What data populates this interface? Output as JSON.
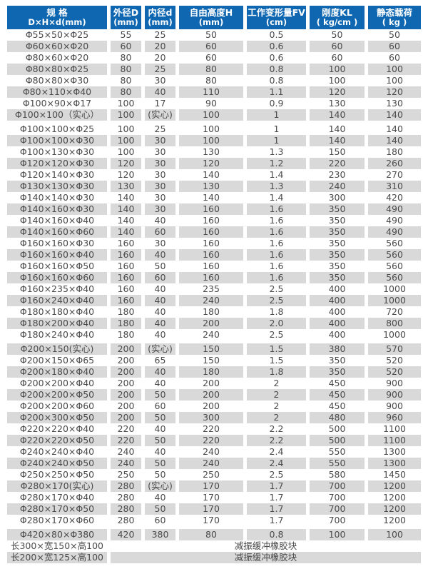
{
  "colors": {
    "header_bg": "#0f67b2",
    "header_text": "#ffffff",
    "row_alt_bg": "#d9d9d9",
    "body_text": "#4a4a4a"
  },
  "table": {
    "columns": [
      {
        "line1": "规  格",
        "line2": "D×H×d(mm)"
      },
      {
        "line1": "外径D",
        "line2": "(mm)"
      },
      {
        "line1": "内径d",
        "line2": "(mm)"
      },
      {
        "line1": "自由高度H",
        "line2": "(mm)"
      },
      {
        "line1": "工作变形量FV",
        "line2": "(cm)"
      },
      {
        "line1": "刚度KL",
        "line2": "( kg/cm )"
      },
      {
        "line1": "静态载荷",
        "line2": "( kg )"
      }
    ],
    "merged_note": "减振缓冲橡胶块",
    "rows": [
      {
        "cells": [
          "Φ55×50×Φ25",
          "55",
          "25",
          "50",
          "0.5",
          "50",
          "50"
        ]
      },
      {
        "cells": [
          "Φ60×60×Φ20",
          "60",
          "20",
          "60",
          "0.6",
          "60",
          "60"
        ]
      },
      {
        "cells": [
          "Φ80×60×Φ20",
          "80",
          "20",
          "60",
          "0.6",
          "60",
          "60"
        ]
      },
      {
        "cells": [
          "Φ80×80×Φ25",
          "80",
          "25",
          "80",
          "0.8",
          "100",
          "100"
        ]
      },
      {
        "cells": [
          "Φ80×80×Φ30",
          "80",
          "30",
          "80",
          "0.8",
          "100",
          "100"
        ]
      },
      {
        "cells": [
          "Φ80×110×Φ40",
          "80",
          "40",
          "110",
          "1.1",
          "120",
          "120"
        ]
      },
      {
        "cells": [
          "Φ100×90×Φ17",
          "100",
          "17",
          "90",
          "0.9",
          "130",
          "130"
        ]
      },
      {
        "cells": [
          "Φ100×100（实心）",
          "100",
          "(实心)",
          "100",
          "1",
          "140",
          "140"
        ]
      },
      {
        "gap_before": true,
        "cells": [
          "Φ100×100×Φ25",
          "100",
          "25",
          "100",
          "1",
          "140",
          "140"
        ]
      },
      {
        "cells": [
          "Φ100×100×Φ30",
          "100",
          "30",
          "100",
          "1",
          "140",
          "140"
        ]
      },
      {
        "cells": [
          "Φ100×130×Φ30",
          "100",
          "30",
          "130",
          "1.3",
          "150",
          "180"
        ]
      },
      {
        "cells": [
          "Φ120×120×Φ30",
          "120",
          "30",
          "120",
          "1.2",
          "220",
          "260"
        ]
      },
      {
        "cells": [
          "Φ120×140×Φ30",
          "120",
          "30",
          "140",
          "1.4",
          "230",
          "270"
        ]
      },
      {
        "cells": [
          "Φ130×130×Φ30",
          "130",
          "30",
          "130",
          "1.3",
          "240",
          "310"
        ]
      },
      {
        "cells": [
          "Φ140×140×Φ30",
          "140",
          "30",
          "140",
          "1.4",
          "300",
          "420"
        ]
      },
      {
        "cells": [
          "Φ140×160×Φ30",
          "140",
          "30",
          "160",
          "1.6",
          "350",
          "490"
        ]
      },
      {
        "cells": [
          "Φ140×160×Φ40",
          "140",
          "40",
          "160",
          "1.6",
          "350",
          "490"
        ]
      },
      {
        "cells": [
          "Φ140×160×Φ60",
          "140",
          "60",
          "160",
          "1.6",
          "350",
          "490"
        ]
      },
      {
        "cells": [
          "Φ160×160×Φ30",
          "160",
          "30",
          "160",
          "1.6",
          "350",
          "560"
        ]
      },
      {
        "cells": [
          "Φ160×160×Φ40",
          "160",
          "40",
          "160",
          "1.6",
          "350",
          "560"
        ]
      },
      {
        "cells": [
          "Φ160×160×Φ50",
          "160",
          "50",
          "160",
          "1.6",
          "350",
          "560"
        ]
      },
      {
        "cells": [
          "Φ160×160×Φ60",
          "160",
          "60",
          "160",
          "1.6",
          "350",
          "560"
        ]
      },
      {
        "cells": [
          "Φ160×235×Φ40",
          "160",
          "40",
          "235",
          "2.5",
          "400",
          "1000"
        ]
      },
      {
        "cells": [
          "Φ160×240×Φ40",
          "160",
          "40",
          "240",
          "2.5",
          "400",
          "1000"
        ]
      },
      {
        "cells": [
          "Φ180×180×Φ40",
          "180",
          "40",
          "180",
          "1.8",
          "400",
          "720"
        ]
      },
      {
        "cells": [
          "Φ180×200×Φ40",
          "180",
          "40",
          "200",
          "2.0",
          "400",
          "800"
        ]
      },
      {
        "cells": [
          "Φ180×240×Φ40",
          "180",
          "40",
          "240",
          "2.5",
          "400",
          "1000"
        ]
      },
      {
        "gap_before": true,
        "cells": [
          "Φ200×150(实心)",
          "200",
          "(实心)",
          "150",
          "1.5",
          "380",
          "570"
        ]
      },
      {
        "cells": [
          "Φ200×150×Φ65",
          "200",
          "65",
          "150",
          "1.5",
          "350",
          "520"
        ]
      },
      {
        "cells": [
          "Φ200×180×Φ40",
          "200",
          "40",
          "180",
          "1.8",
          "350",
          "520"
        ]
      },
      {
        "cells": [
          "Φ200×200×Φ40",
          "200",
          "40",
          "200",
          "2",
          "450",
          "900"
        ]
      },
      {
        "cells": [
          "Φ200×200×Φ50",
          "200",
          "50",
          "200",
          "2",
          "450",
          "900"
        ]
      },
      {
        "cells": [
          "Φ200×200×Φ60",
          "200",
          "60",
          "200",
          "2",
          "450",
          "900"
        ]
      },
      {
        "cells": [
          "Φ200×300×Φ50",
          "200",
          "50",
          "300",
          "2",
          "480",
          "960"
        ]
      },
      {
        "cells": [
          "Φ220×220×Φ40",
          "220",
          "40",
          "220",
          "2.2",
          "500",
          "1100"
        ]
      },
      {
        "cells": [
          "Φ220×220×Φ50",
          "220",
          "50",
          "220",
          "2.2",
          "500",
          "1100"
        ]
      },
      {
        "cells": [
          "Φ240×240×Φ40",
          "240",
          "40",
          "240",
          "2.4",
          "550",
          "1300"
        ]
      },
      {
        "cells": [
          "Φ240×240×Φ50",
          "240",
          "50",
          "240",
          "2.4",
          "550",
          "1300"
        ]
      },
      {
        "cells": [
          "Φ250×250×Φ50",
          "250",
          "50",
          "250",
          "2.5",
          "580",
          "1450"
        ]
      },
      {
        "cells": [
          "Φ280×170(实心)",
          "280",
          "(实心)",
          "170",
          "1.7",
          "700",
          "1200"
        ]
      },
      {
        "cells": [
          "Φ280×170×Φ40",
          "280",
          "40",
          "170",
          "1.7",
          "700",
          "1200"
        ]
      },
      {
        "cells": [
          "Φ280×170×Φ50",
          "280",
          "50",
          "170",
          "1.7",
          "700",
          "1200"
        ]
      },
      {
        "cells": [
          "Φ280×170×Φ60",
          "280",
          "60",
          "170",
          "1.7",
          "700",
          "1200"
        ]
      },
      {
        "gap_before": true,
        "cells": [
          "Φ420×80×Φ380",
          "420",
          "380",
          "80",
          "0.8",
          "100",
          "100"
        ]
      },
      {
        "merged": true,
        "cells": [
          "长300×宽150×高100"
        ]
      },
      {
        "merged": true,
        "cells": [
          "长200×宽125×高100"
        ]
      }
    ]
  }
}
